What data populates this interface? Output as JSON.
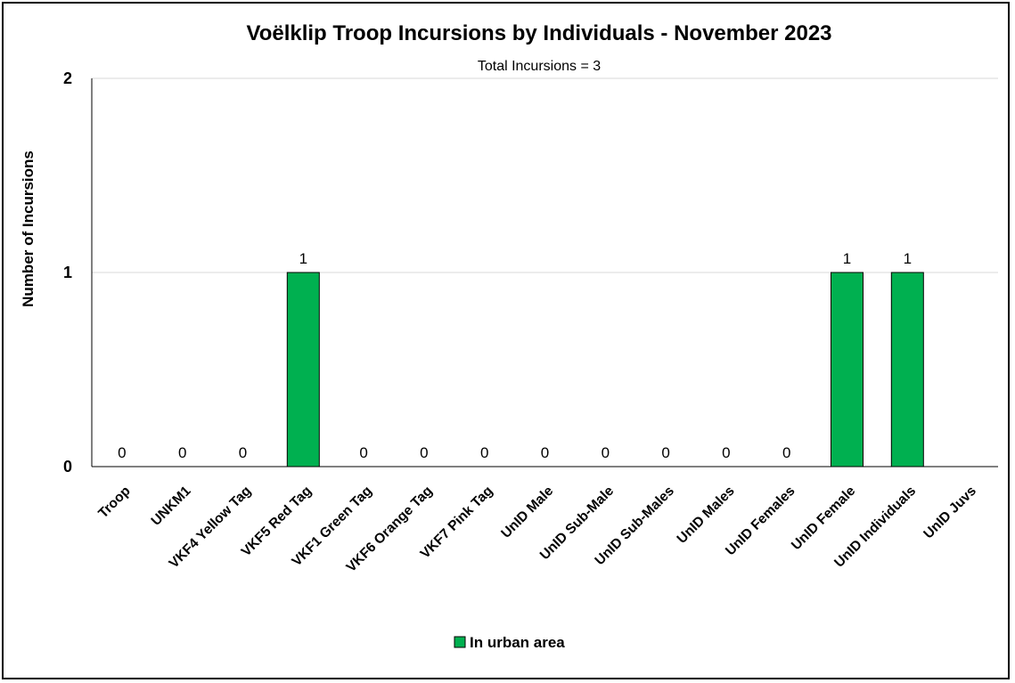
{
  "chart_data": {
    "type": "bar",
    "title": "Voëlklip Troop Incursions by Individuals - November 2023",
    "subtitle": "Total Incursions = 3",
    "ylabel": "Number of Incursions",
    "xlabel": "",
    "ylim": [
      0,
      2
    ],
    "yticks": [
      "0",
      "1",
      "2"
    ],
    "grid": true,
    "legend_position": "bottom",
    "categories": [
      "Troop",
      "UNKM1",
      "VKF4 Yellow Tag",
      "VKF5 Red Tag",
      "VKF1 Green Tag",
      "VKF6 Orange Tag",
      "VKF7 Pink Tag",
      "UnID Male",
      "UnID Sub-Male",
      "UnID Sub-Males",
      "UnID Males",
      "UnID Females",
      "UnID Female",
      "UnID Individuals",
      "UnID Juvs"
    ],
    "series": [
      {
        "name": "In urban area",
        "color": "#00B050",
        "values": [
          0,
          0,
          0,
          1,
          0,
          0,
          0,
          0,
          0,
          0,
          0,
          0,
          1,
          1,
          null
        ],
        "data_labels": [
          "0",
          "0",
          "0",
          "1",
          "0",
          "0",
          "0",
          "0",
          "0",
          "0",
          "0",
          "0",
          "1",
          "1",
          ""
        ]
      }
    ]
  }
}
